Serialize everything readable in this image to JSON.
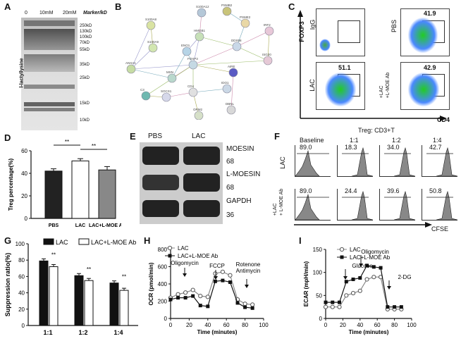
{
  "panels": {
    "A": {
      "label": "A",
      "lanes": [
        "0",
        "10mM",
        "20mM"
      ],
      "marker_header": "Marker/kD",
      "markers": [
        "250kD",
        "130kD",
        "100kD",
        "70kD",
        "55kD",
        "35kD",
        "25kD",
        "15kD",
        "10kD"
      ],
      "ylabel": "l-lactyllysine"
    },
    "B": {
      "label": "B",
      "nodes": [
        "PSMB2",
        "S100A12",
        "PSME2",
        "S100A8",
        "IRF2",
        "HMGB1",
        "DDX58",
        "S100A9",
        "ENO1",
        "ISG20",
        "ANXA1",
        "FOXP3",
        "MSN",
        "AIRE",
        "CD4",
        "IDO1",
        "SOCS1",
        "C3",
        "DBNL",
        "ORM2"
      ]
    },
    "C": {
      "label": "C",
      "ylabel": "FOXP3",
      "xlabel": "CD4",
      "plots": [
        {
          "name": "IgG",
          "value": ""
        },
        {
          "name": "PBS",
          "value": "41.9"
        },
        {
          "name": "LAC",
          "value": "51.1"
        },
        {
          "name": "+LAC\n+L-MOE Ab",
          "value": "42.9"
        }
      ]
    },
    "D": {
      "label": "D",
      "chart_data": {
        "type": "bar",
        "categories": [
          "PBS",
          "LAC",
          "LAC+L-MOE Ab"
        ],
        "values": [
          42,
          51,
          43
        ],
        "errors": [
          2,
          2,
          3
        ],
        "ylabel": "Treg percentage(%)",
        "ylim": [
          0,
          60
        ],
        "yticks": [
          "0",
          "20",
          "40",
          "60"
        ],
        "significance": [
          "**",
          "**"
        ]
      }
    },
    "E": {
      "label": "E",
      "headers": [
        "PBS",
        "LAC"
      ],
      "rows": [
        {
          "name": "MOESIN",
          "kd": "68"
        },
        {
          "name": "L-MOESIN",
          "kd": "68"
        },
        {
          "name": "GAPDH",
          "kd": "36"
        }
      ]
    },
    "F": {
      "label": "F",
      "title": "Treg: CD3+T",
      "columns": [
        "Baseline",
        "1:1",
        "1:2",
        "1:4"
      ],
      "rows": [
        {
          "name": "LAC",
          "values": [
            "89.0",
            "18.3",
            "34.0",
            "42.7"
          ]
        },
        {
          "name": "+LAC\n+ L-MOE Ab",
          "values": [
            "89.0",
            "24.4",
            "39.6",
            "50.8"
          ]
        }
      ],
      "xlabel": "CFSE"
    },
    "G": {
      "label": "G",
      "chart_data": {
        "type": "bar",
        "categories": [
          "1:1",
          "1:2",
          "1:4"
        ],
        "series": [
          {
            "name": "LAC",
            "values": [
              79,
              61,
              52
            ]
          },
          {
            "name": "LAC+L-MOE Ab",
            "values": [
              72,
              55,
              43
            ]
          }
        ],
        "ylabel": "Suppression ratio(%)",
        "ylim": [
          0,
          100
        ],
        "yticks": [
          "0",
          "20",
          "40",
          "60",
          "80",
          "100"
        ],
        "significance": [
          "**",
          "**",
          "**"
        ]
      }
    },
    "H": {
      "label": "H",
      "chart_data": {
        "type": "line",
        "x": [
          0,
          8,
          16,
          24,
          32,
          40,
          48,
          56,
          64,
          72,
          80,
          88
        ],
        "series": [
          {
            "name": "LAC",
            "values": [
              240,
              280,
              300,
              330,
              260,
              250,
              520,
              540,
              500,
              220,
              170,
              160
            ]
          },
          {
            "name": "LAC+L-MOE Ab",
            "values": [
              220,
              240,
              240,
              260,
              150,
              140,
              430,
              440,
              420,
              180,
              130,
              120
            ]
          }
        ],
        "xlabel": "Time (minutes)",
        "ylabel": "OCR (pmol/min)",
        "xlim": [
          0,
          100
        ],
        "ylim": [
          0,
          800
        ],
        "xticks": [
          "0",
          "20",
          "40",
          "60",
          "80",
          "100"
        ],
        "yticks": [
          "0",
          "200",
          "400",
          "600",
          "800"
        ],
        "annotations": [
          "Oligomycin",
          "FCCP",
          "Rotenone\nAntimycin"
        ]
      }
    },
    "I": {
      "label": "I",
      "chart_data": {
        "type": "line",
        "x": [
          0,
          8,
          16,
          24,
          32,
          40,
          48,
          56,
          64,
          72,
          80,
          88
        ],
        "series": [
          {
            "name": "LAC",
            "values": [
              25,
              25,
              25,
              50,
              55,
              60,
              85,
              90,
              90,
              20,
              20,
              20
            ]
          },
          {
            "name": "LAC+L-MOE Ab",
            "values": [
              35,
              35,
              35,
              80,
              85,
              88,
              115,
              112,
              110,
              25,
              25,
              25
            ]
          }
        ],
        "xlabel": "Time (minutes)",
        "ylabel": "ECAR (mpH/min)",
        "xlim": [
          0,
          100
        ],
        "ylim": [
          0,
          150
        ],
        "xticks": [
          "0",
          "20",
          "40",
          "60",
          "80",
          "100"
        ],
        "yticks": [
          "0",
          "50",
          "100",
          "150"
        ],
        "annotations": [
          "Glucose",
          "Oligomycin",
          "2-DG"
        ]
      }
    }
  }
}
